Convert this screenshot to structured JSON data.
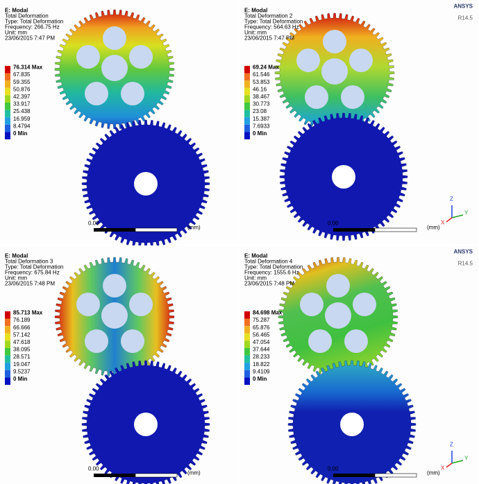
{
  "panels": [
    {
      "title": "E: Modal",
      "lines": [
        "Total Deformation",
        "Type: Total Deformation",
        "Frequency: 266.75 Hz",
        "Unit: mm",
        "23/06/2015 7:47 PM"
      ],
      "legend": [
        "76.314 Max",
        "67.835",
        "59.355",
        "50.876",
        "42.397",
        "33.917",
        "25.438",
        "16.959",
        "8.4794",
        "0 Min"
      ],
      "scale_start": "0.00",
      "scale_end": "(mm)"
    },
    {
      "title": "E: Modal",
      "lines": [
        "Total Deformation 2",
        "Type: Total Deformation",
        "Frequency: 564.63 Hz",
        "Unit: mm",
        "23/06/2015 7:47 PM"
      ],
      "legend": [
        "69.24 Max",
        "61.546",
        "53.853",
        "46.16",
        "38.467",
        "30.773",
        "23.08",
        "15.387",
        "7.6933",
        "0 Min"
      ],
      "scale_start": "0.00",
      "scale_end": "(mm)"
    },
    {
      "title": "E: Modal",
      "lines": [
        "Total Deformation 3",
        "Type: Total Deformation",
        "Frequency: 675.84 Hz",
        "Unit: mm",
        "23/06/2015 7:48 PM"
      ],
      "legend": [
        "85.713 Max",
        "76.189",
        "66.666",
        "57.142",
        "47.618",
        "38.095",
        "28.571",
        "19.047",
        "9.5237",
        "0 Min"
      ],
      "scale_start": "0.00",
      "scale_end": "(mm)"
    },
    {
      "title": "E: Modal",
      "lines": [
        "Total Deformation 4",
        "Type: Total Deformation",
        "Frequency: 1555.6 Hz",
        "Unit: mm",
        "23/06/2015 7:48 PM"
      ],
      "legend": [
        "84.698 Max",
        "75.287",
        "65.876",
        "56.465",
        "47.054",
        "37.644",
        "28.233",
        "18.822",
        "9.4109",
        "0 Min"
      ],
      "scale_start": "0.00",
      "scale_end": "(mm)"
    }
  ],
  "logo": {
    "name": "ANSYS",
    "version": "R14.5"
  },
  "axes": {
    "x": "X",
    "y": "Y",
    "z": "Z"
  }
}
